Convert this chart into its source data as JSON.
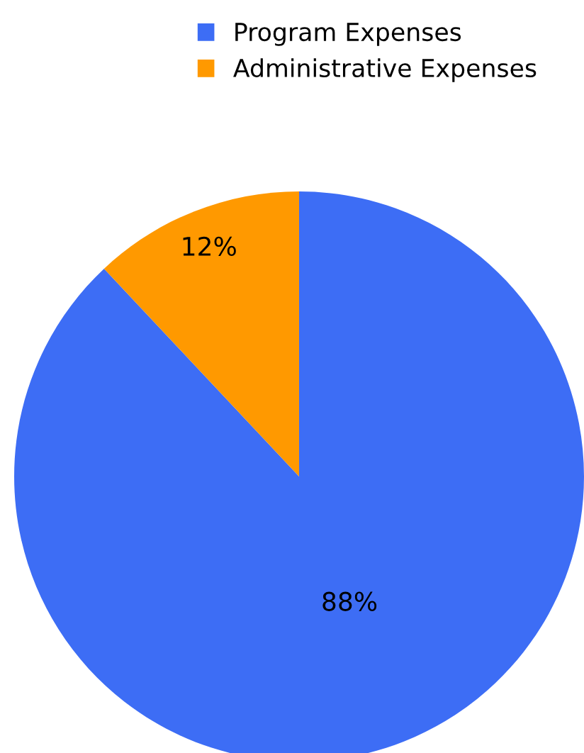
{
  "chart_data": {
    "type": "pie",
    "categories": [
      "Program Expenses",
      "Administrative Expenses"
    ],
    "values": [
      88,
      12
    ],
    "colors": [
      "#3d6df5",
      "#ff9900"
    ],
    "value_labels": [
      "88%",
      "12%"
    ],
    "legend": "top"
  }
}
